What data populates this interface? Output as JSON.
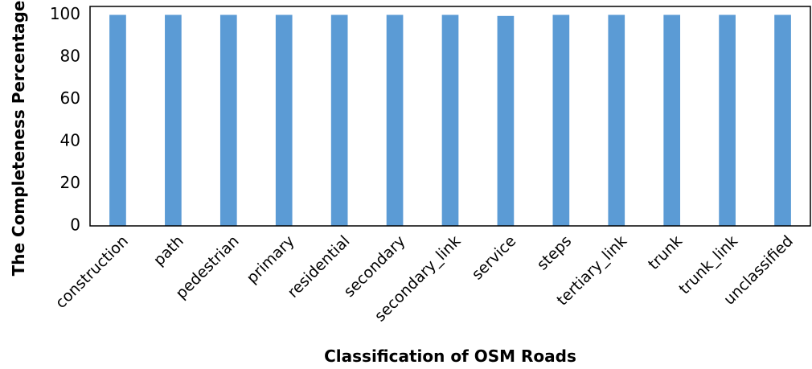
{
  "chart_data": {
    "type": "bar",
    "x_label": "Classification of OSM Roads",
    "y_label": "The Completeness Percentage",
    "categories": [
      "construction",
      "path",
      "pedestrian",
      "primary",
      "residential",
      "secondary",
      "secondary_link",
      "service",
      "steps",
      "tertiary_link",
      "trunk",
      "trunk_link",
      "unclassified"
    ],
    "values": [
      100,
      100,
      100,
      100,
      100,
      100,
      100,
      99.5,
      100,
      100,
      100,
      100,
      100
    ],
    "color": "#5b9bd5",
    "ylim": [
      0,
      104
    ],
    "yticks": [
      0,
      20,
      40,
      60,
      80,
      100
    ],
    "grid": false
  }
}
